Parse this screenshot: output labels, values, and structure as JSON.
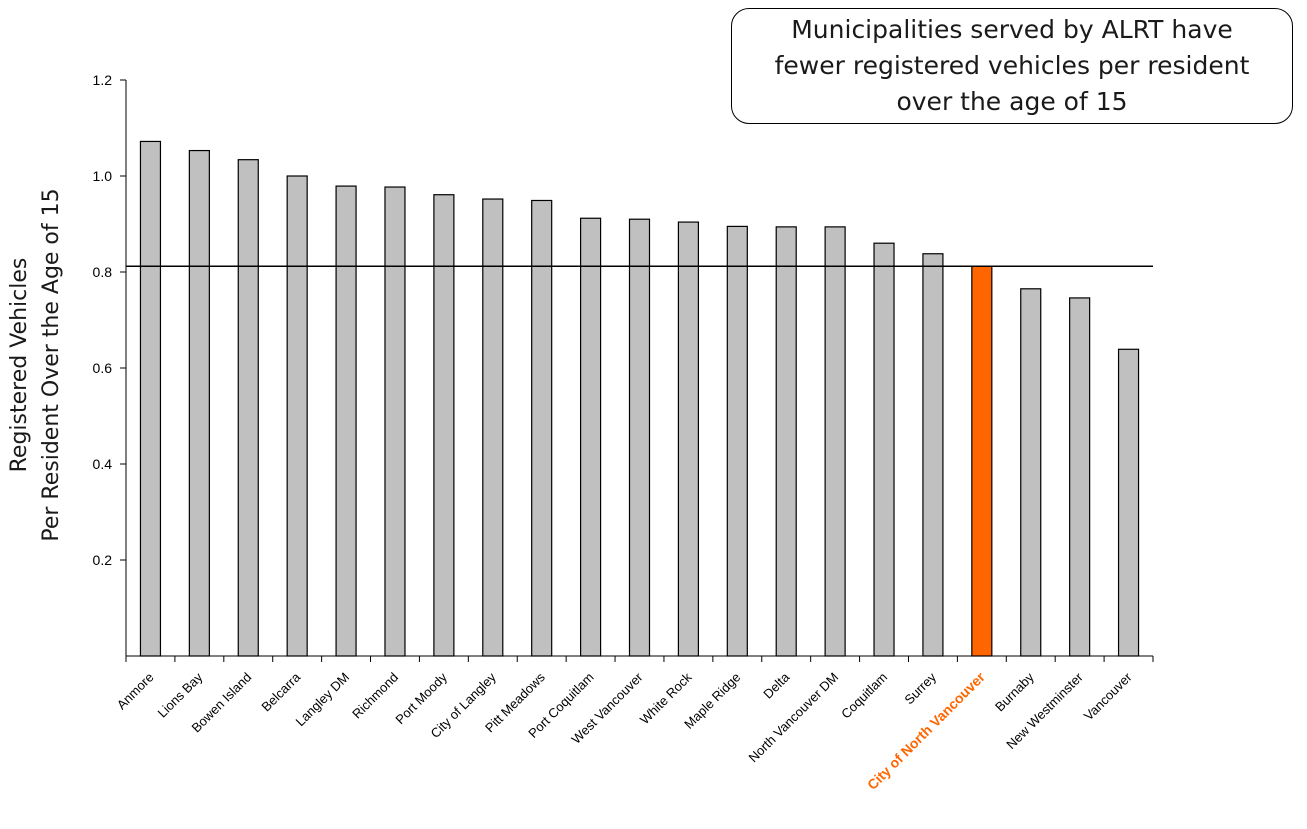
{
  "chart_data": {
    "type": "bar",
    "title": "",
    "ylabel_lines": [
      "Registered Vehicles",
      "Per Resident Over the Age of 15"
    ],
    "xlabel": "",
    "ylim": [
      0,
      1.2
    ],
    "yticks": [
      "0.2",
      "0.4",
      "0.6",
      "0.8",
      "1.0",
      "1.2"
    ],
    "reference_line": 0.812,
    "categories": [
      "Anmore",
      "Lions Bay",
      "Bowen Island",
      "Belcarra",
      "Langley DM",
      "Richmond",
      "Port Moody",
      "City of Langley",
      "Pitt Meadows",
      "Port Coquitlam",
      "West Vancouver",
      "White Rock",
      "Maple Ridge",
      "Delta",
      "North Vancouver DM",
      "Coquitlam",
      "Surrey",
      "City of North Vancouver",
      "Burnaby",
      "New Westminster",
      "Vancouver"
    ],
    "values": [
      1.072,
      1.053,
      1.034,
      1.0,
      0.979,
      0.977,
      0.961,
      0.952,
      0.949,
      0.912,
      0.91,
      0.904,
      0.895,
      0.894,
      0.894,
      0.86,
      0.838,
      0.812,
      0.765,
      0.746,
      0.639
    ],
    "highlight": "City of North Vancouver",
    "bar_color": "#c0c0c0",
    "highlight_color": "#ff6600",
    "highlight_label_color": "#ff6600",
    "grid": false
  },
  "annotation": {
    "lines": [
      "Municipalities served by ALRT have",
      "fewer registered vehicles per resident",
      "over the age of 15"
    ]
  }
}
